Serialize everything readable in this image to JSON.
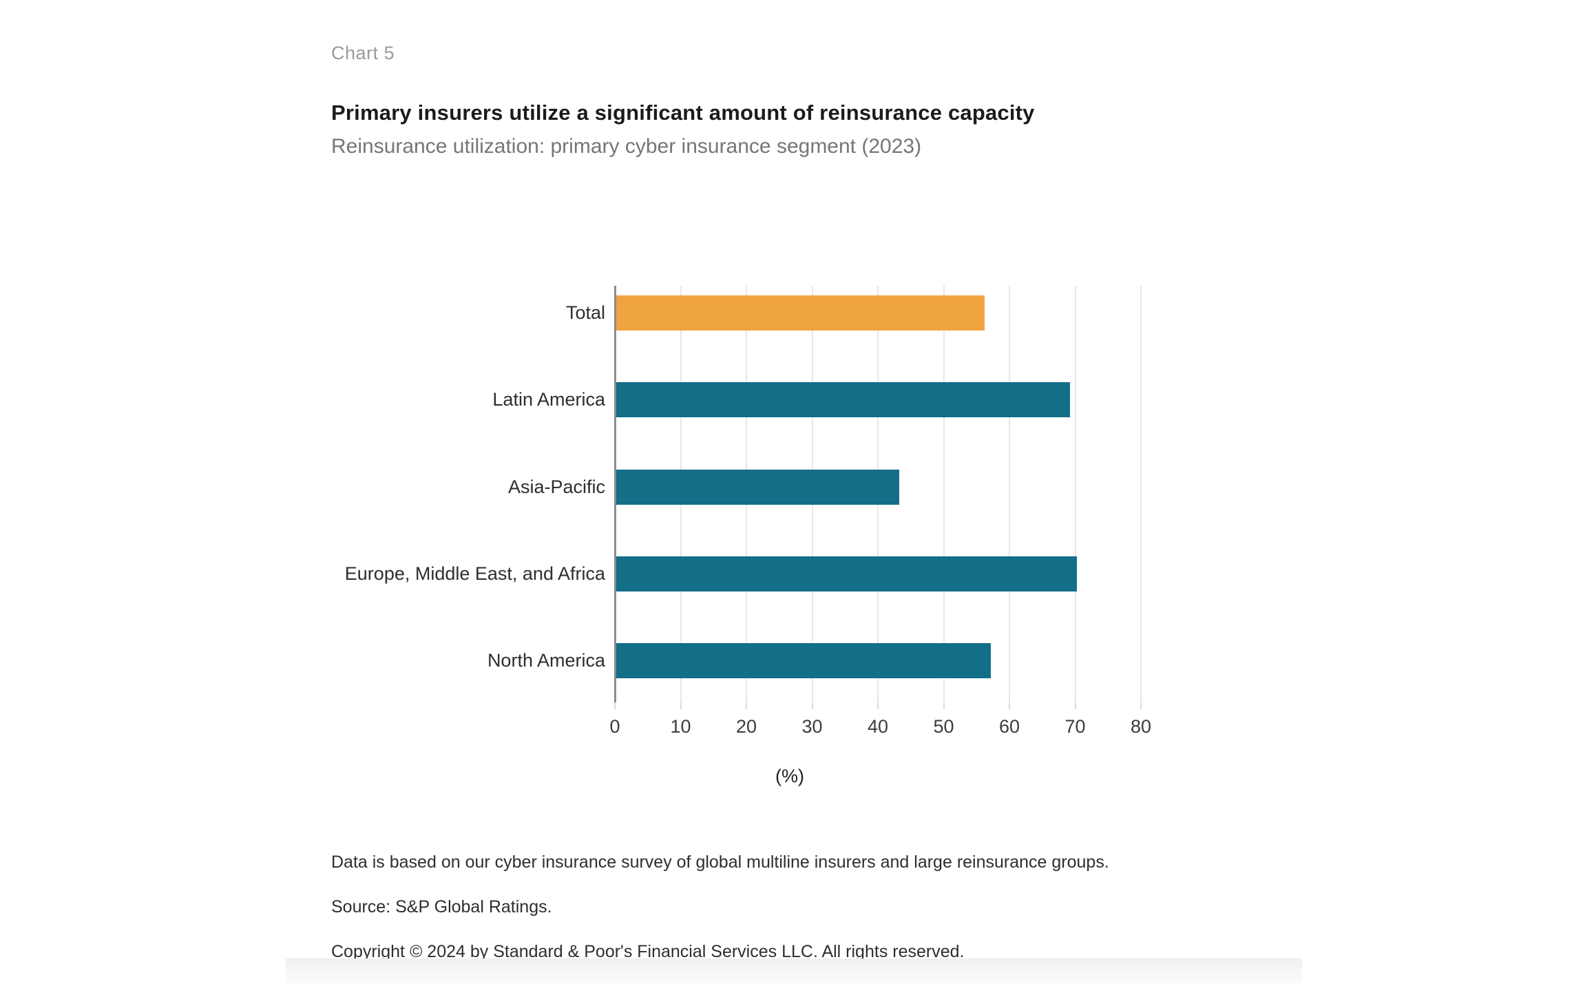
{
  "page": {
    "chart_label": "Chart 5",
    "title": "Primary insurers utilize a significant amount of reinsurance capacity",
    "subtitle": "Reinsurance utilization: primary cyber insurance segment (2023)"
  },
  "chart_data": {
    "type": "bar",
    "orientation": "horizontal",
    "title": "Primary insurers utilize a significant amount of reinsurance capacity",
    "subtitle": "Reinsurance utilization: primary cyber insurance segment (2023)",
    "categories": [
      "Total",
      "Latin America",
      "Asia-Pacific",
      "Europe, Middle East, and Africa",
      "North America"
    ],
    "values": [
      56,
      69,
      43,
      70,
      57
    ],
    "bar_colors": [
      "#F0A341",
      "#136E87",
      "#136E87",
      "#136E87",
      "#136E87"
    ],
    "xlabel": "(%)",
    "ylabel": "",
    "xlim": [
      0,
      80
    ],
    "xticks": [
      0,
      10,
      20,
      30,
      40,
      50,
      60,
      70,
      80
    ],
    "grid": "vertical-gridlines-on",
    "legend": "none",
    "colors": {
      "highlight_orange": "#F0A341",
      "region_teal": "#136E87",
      "gridline": "#e7e7e7",
      "axis_line": "#8c8c8c"
    }
  },
  "footnotes": {
    "line1": "Data is based on our cyber insurance survey of global multiline insurers and large reinsurance groups.",
    "line2": "Source: S&P Global Ratings.",
    "line3": "Copyright © 2024 by Standard & Poor's Financial Services LLC. All rights reserved."
  }
}
